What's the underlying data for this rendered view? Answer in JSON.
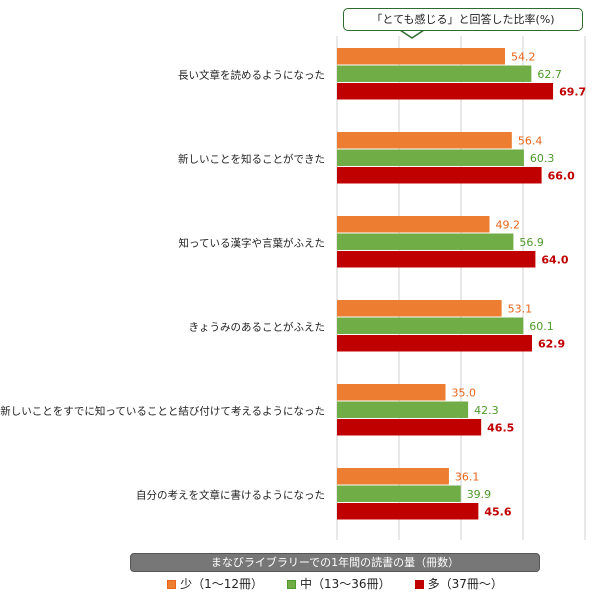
{
  "chart_data": {
    "type": "bar",
    "orientation": "horizontal",
    "title": "「とても感じる」と回答した比率(%)",
    "xlabel": "まなびライブラリーでの1年間の読書の量（冊数）",
    "xlim": [
      0,
      80
    ],
    "grid": true,
    "legend_placement": "bottom",
    "categories": [
      "長い文章を読めるようになった",
      "新しいことを知ることができた",
      "知っている漢字や言葉がふえた",
      "きょうみのあることがふえた",
      "新しいことをすでに知っていることと結び付けて考えるようになった",
      "自分の考えを文章に書けるようになった"
    ],
    "series": [
      {
        "name": "少（1～12冊）",
        "color": "#ed7d31",
        "label_color": "#e8641a",
        "values": [
          54.2,
          56.4,
          49.2,
          53.1,
          35.0,
          36.1
        ]
      },
      {
        "name": "中（13～36冊）",
        "color": "#70ad47",
        "label_color": "#4e9a2a",
        "values": [
          62.7,
          60.3,
          56.9,
          60.1,
          42.3,
          39.9
        ]
      },
      {
        "name": "多（37冊～）",
        "color": "#c00000",
        "label_color": "#c00000",
        "values": [
          69.7,
          66.0,
          64.0,
          62.9,
          46.5,
          45.6
        ]
      }
    ]
  }
}
